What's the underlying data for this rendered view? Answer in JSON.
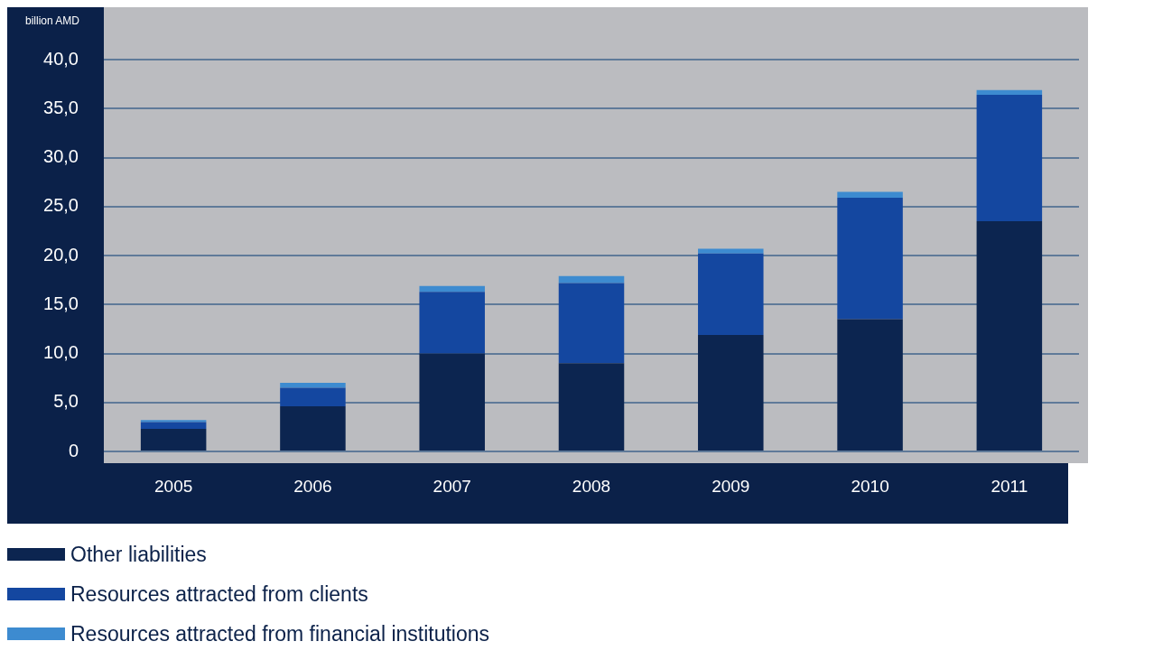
{
  "chart_data": {
    "type": "bar",
    "stacked": true,
    "ylabel": "billion AMD",
    "categories": [
      "2005",
      "2006",
      "2007",
      "2008",
      "2009",
      "2010",
      "2011"
    ],
    "series": [
      {
        "name": "Other liabilities",
        "color": "#0c2550",
        "values": [
          2.3,
          4.6,
          10.0,
          9.0,
          11.9,
          13.5,
          23.5
        ]
      },
      {
        "name": "Resources attracted from clients",
        "color": "#1447a0",
        "values": [
          0.7,
          1.9,
          6.3,
          8.2,
          8.3,
          12.4,
          12.9
        ]
      },
      {
        "name": "Resources attracted from financial institutions",
        "color": "#3d8bd0",
        "values": [
          0.2,
          0.5,
          0.6,
          0.7,
          0.5,
          0.6,
          0.5
        ]
      }
    ],
    "ylim": [
      0,
      40
    ],
    "yticks": [
      0,
      {
        "value": 5,
        "label": "5,0"
      },
      {
        "value": 10,
        "label": "10,0"
      },
      {
        "value": 15,
        "label": "15,0"
      },
      {
        "value": 20,
        "label": "20,0"
      },
      {
        "value": 25,
        "label": "25,0"
      },
      {
        "value": 30,
        "label": "30,0"
      },
      {
        "value": 35,
        "label": "35,0"
      },
      {
        "value": 40,
        "label": "40,0"
      }
    ],
    "grid": "y",
    "legend": "bottom"
  }
}
